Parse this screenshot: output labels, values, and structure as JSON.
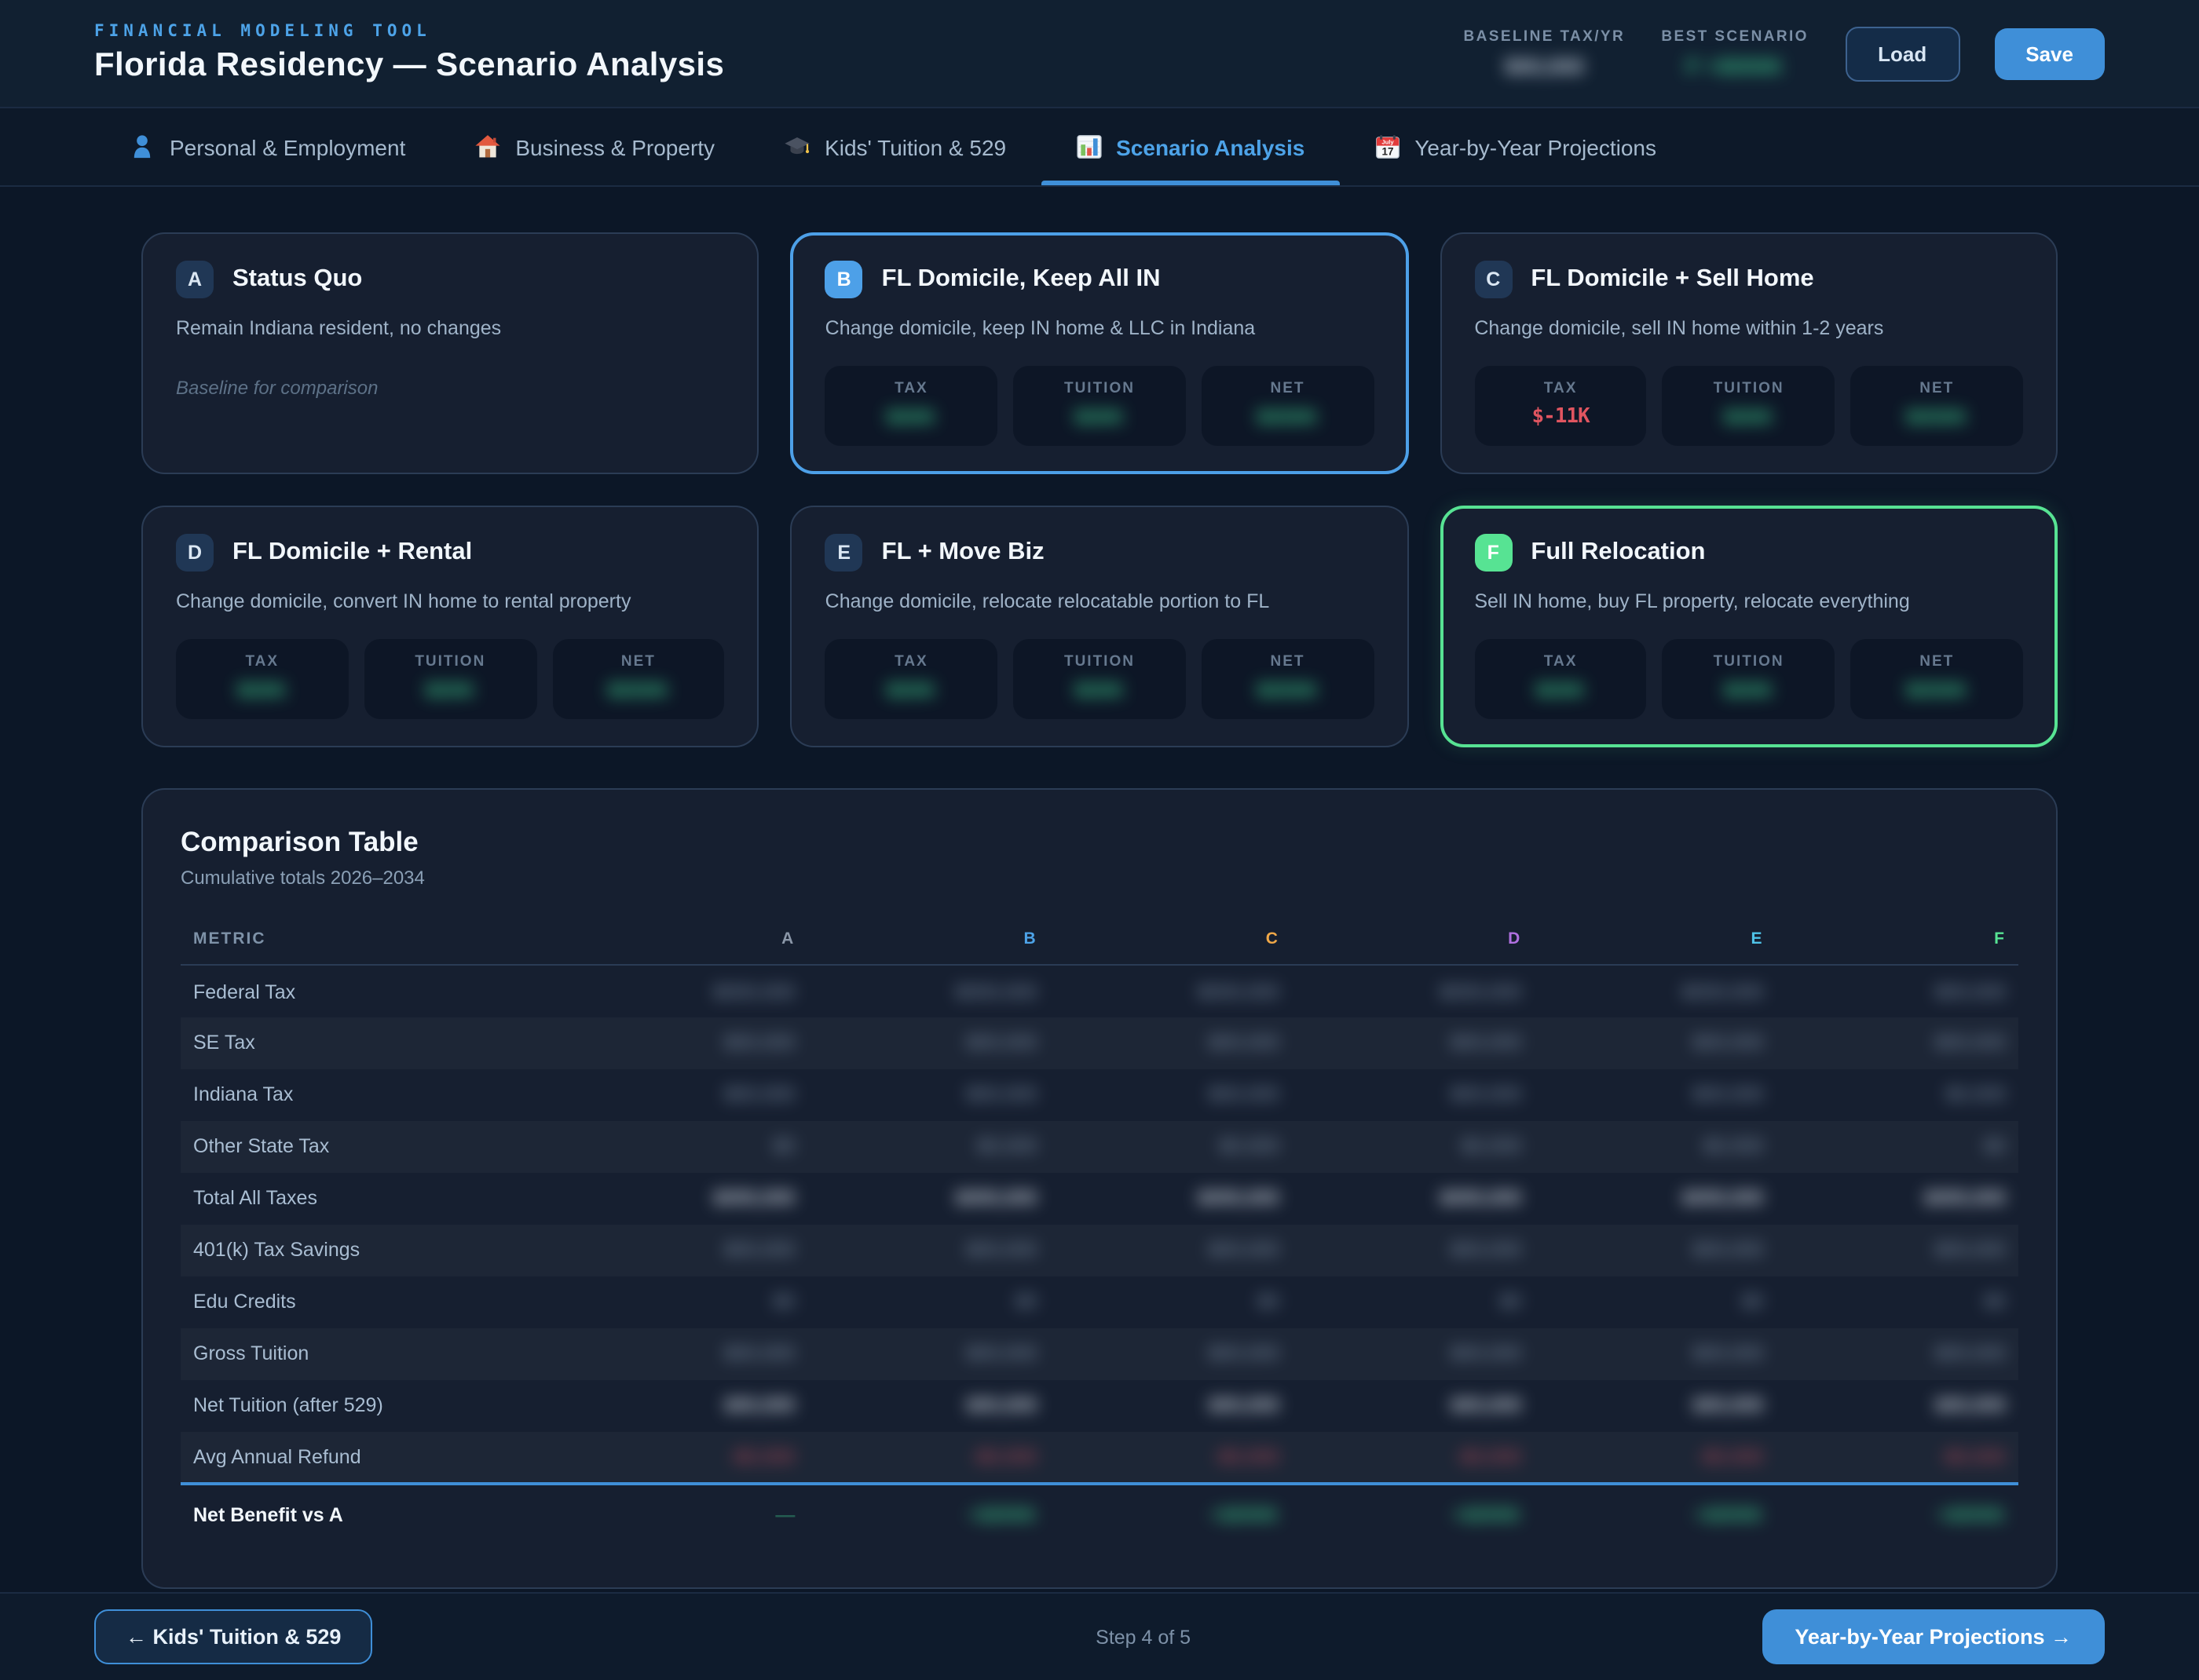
{
  "header": {
    "eyebrow": "FINANCIAL MODELING TOOL",
    "title": "Florida Residency — Scenario Analysis",
    "stats": [
      {
        "label": "BASELINE TAX/YR",
        "value": "$00,000",
        "masked": true,
        "color": "white"
      },
      {
        "label": "BEST SCENARIO",
        "value": "F +$000K",
        "masked": true,
        "color": "green"
      }
    ],
    "load_label": "Load",
    "save_label": "Save"
  },
  "tabs": [
    {
      "label": "Personal & Employment",
      "icon": "person-icon",
      "active": false
    },
    {
      "label": "Business & Property",
      "icon": "house-icon",
      "active": false
    },
    {
      "label": "Kids' Tuition & 529",
      "icon": "graduation-cap-icon",
      "active": false
    },
    {
      "label": "Scenario Analysis",
      "icon": "bar-chart-icon",
      "active": true
    },
    {
      "label": "Year-by-Year Projections",
      "icon": "calendar-icon",
      "active": false
    }
  ],
  "scenarios": [
    {
      "id": "A",
      "title": "Status Quo",
      "desc": "Remain Indiana resident, no changes",
      "note": "Baseline for comparison",
      "highlight": "none",
      "stats": []
    },
    {
      "id": "B",
      "title": "FL Domicile, Keep All IN",
      "desc": "Change domicile, keep IN home & LLC in Indiana",
      "note": "",
      "highlight": "blue",
      "stats": [
        {
          "label": "TAX",
          "value": "$00K",
          "masked": true,
          "color": "green"
        },
        {
          "label": "TUITION",
          "value": "$00K",
          "masked": true,
          "color": "green"
        },
        {
          "label": "NET",
          "value": "$000K",
          "masked": true,
          "color": "green"
        }
      ]
    },
    {
      "id": "C",
      "title": "FL Domicile + Sell Home",
      "desc": "Change domicile, sell IN home within 1-2 years",
      "note": "",
      "highlight": "none",
      "stats": [
        {
          "label": "TAX",
          "value": "$-11K",
          "masked": false,
          "color": "red"
        },
        {
          "label": "TUITION",
          "value": "$00K",
          "masked": true,
          "color": "green"
        },
        {
          "label": "NET",
          "value": "$000K",
          "masked": true,
          "color": "green"
        }
      ]
    },
    {
      "id": "D",
      "title": "FL Domicile + Rental",
      "desc": "Change domicile, convert IN home to rental property",
      "note": "",
      "highlight": "none",
      "stats": [
        {
          "label": "TAX",
          "value": "$00K",
          "masked": true,
          "color": "green"
        },
        {
          "label": "TUITION",
          "value": "$00K",
          "masked": true,
          "color": "green"
        },
        {
          "label": "NET",
          "value": "$000K",
          "masked": true,
          "color": "green"
        }
      ]
    },
    {
      "id": "E",
      "title": "FL + Move Biz",
      "desc": "Change domicile, relocate relocatable portion to FL",
      "note": "",
      "highlight": "none",
      "stats": [
        {
          "label": "TAX",
          "value": "$00K",
          "masked": true,
          "color": "green"
        },
        {
          "label": "TUITION",
          "value": "$00K",
          "masked": true,
          "color": "green"
        },
        {
          "label": "NET",
          "value": "$000K",
          "masked": true,
          "color": "green"
        }
      ]
    },
    {
      "id": "F",
      "title": "Full Relocation",
      "desc": "Sell IN home, buy FL property, relocate everything",
      "note": "",
      "highlight": "green",
      "stats": [
        {
          "label": "TAX",
          "value": "$00K",
          "masked": true,
          "color": "green"
        },
        {
          "label": "TUITION",
          "value": "$00K",
          "masked": true,
          "color": "green"
        },
        {
          "label": "NET",
          "value": "$000K",
          "masked": true,
          "color": "green"
        }
      ]
    }
  ],
  "comparison": {
    "title": "Comparison Table",
    "subtitle": "Cumulative totals 2026–2034",
    "columns": [
      "METRIC",
      "A",
      "B",
      "C",
      "D",
      "E",
      "F"
    ],
    "column_colors": {
      "A": "#8b97a8",
      "B": "#4da3e8",
      "C": "#f0a848",
      "D": "#b070e0",
      "E": "#4fc3e8",
      "F": "#57e393"
    },
    "rows": [
      {
        "metric": "Federal Tax",
        "style": "muted",
        "masked": true,
        "values": [
          "$000,000",
          "$000,000",
          "$000,000",
          "$000,000",
          "$000,000",
          "$00,000"
        ]
      },
      {
        "metric": "SE Tax",
        "style": "muted",
        "masked": true,
        "values": [
          "$00,000",
          "$00,000",
          "$00,000",
          "$00,000",
          "$00,000",
          "$00,000"
        ]
      },
      {
        "metric": "Indiana Tax",
        "style": "muted",
        "masked": true,
        "values": [
          "$00,000",
          "$00,000",
          "$00,000",
          "$00,000",
          "$00,000",
          "$0,000"
        ]
      },
      {
        "metric": "Other State Tax",
        "style": "muted",
        "masked": true,
        "values": [
          "$0",
          "$0,000",
          "$0,000",
          "$0,000",
          "$0,000",
          "$0"
        ]
      },
      {
        "metric": "Total All Taxes",
        "style": "bold",
        "masked": true,
        "values": [
          "$000,000",
          "$000,000",
          "$000,000",
          "$000,000",
          "$000,000",
          "$000,000"
        ]
      },
      {
        "metric": "401(k) Tax Savings",
        "style": "muted",
        "masked": true,
        "values": [
          "$00,000",
          "$00,000",
          "$00,000",
          "$00,000",
          "$00,000",
          "$00,000"
        ]
      },
      {
        "metric": "Edu Credits",
        "style": "muted",
        "masked": true,
        "values": [
          "$0",
          "$0",
          "$0",
          "$0",
          "$0",
          "$0"
        ]
      },
      {
        "metric": "Gross Tuition",
        "style": "muted",
        "masked": true,
        "values": [
          "$00,000",
          "$00,000",
          "$00,000",
          "$00,000",
          "$00,000",
          "$00,000"
        ]
      },
      {
        "metric": "Net Tuition (after 529)",
        "style": "bold",
        "masked": true,
        "values": [
          "$00,000",
          "$00,000",
          "$00,000",
          "$00,000",
          "$00,000",
          "$00,000"
        ]
      },
      {
        "metric": "Avg Annual Refund",
        "style": "red",
        "masked": true,
        "values": [
          "-$0,000",
          "-$0,000",
          "-$0,000",
          "-$0,000",
          "-$0,000",
          "-$0,000"
        ]
      }
    ],
    "net_row": {
      "metric": "Net Benefit vs A",
      "style": "green",
      "masked": true,
      "values": [
        "—",
        "+$000K",
        "+$000K",
        "+$000K",
        "+$000K",
        "+$000K"
      ]
    }
  },
  "footer": {
    "back_label": "← Kids' Tuition & 529",
    "step_label": "Step 4 of 5",
    "next_label": "Year-by-Year Projections →"
  }
}
